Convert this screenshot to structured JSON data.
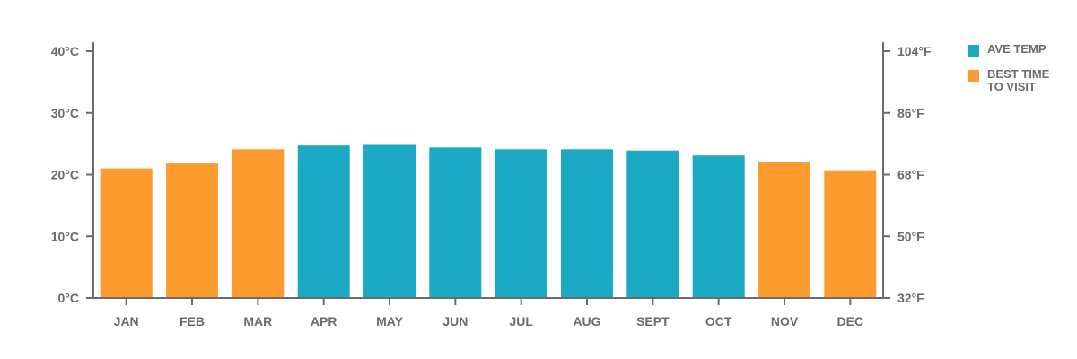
{
  "chart_data": {
    "type": "bar",
    "categories": [
      "JAN",
      "FEB",
      "MAR",
      "APR",
      "MAY",
      "JUN",
      "JUL",
      "AUG",
      "SEPT",
      "OCT",
      "NOV",
      "DEC"
    ],
    "values": [
      21,
      21.8,
      24.1,
      24.7,
      24.8,
      24.4,
      24.1,
      24.1,
      23.9,
      23.1,
      22,
      20.7
    ],
    "best_time": [
      true,
      true,
      true,
      false,
      false,
      false,
      false,
      false,
      false,
      false,
      true,
      true
    ],
    "ylim": [
      0,
      40
    ],
    "y_ticks": [
      0,
      10,
      20,
      30,
      40
    ],
    "y_tick_labels": [
      "0°C",
      "10°C",
      "20°C",
      "30°C",
      "40°C"
    ],
    "y2_tick_labels": [
      "32°F",
      "50°F",
      "68°F",
      "86°F",
      "104°F"
    ],
    "grid": false,
    "legend_position": "right",
    "legend": [
      {
        "label": "AVE TEMP",
        "color": "#1ba9c4"
      },
      {
        "label": "BEST TIME\nTO VISIT",
        "color": "#fd9b2f"
      }
    ],
    "colors": {
      "ave_temp": "#1ba9c4",
      "best_time": "#fd9b2f",
      "axis": "#6b6b6b"
    }
  }
}
